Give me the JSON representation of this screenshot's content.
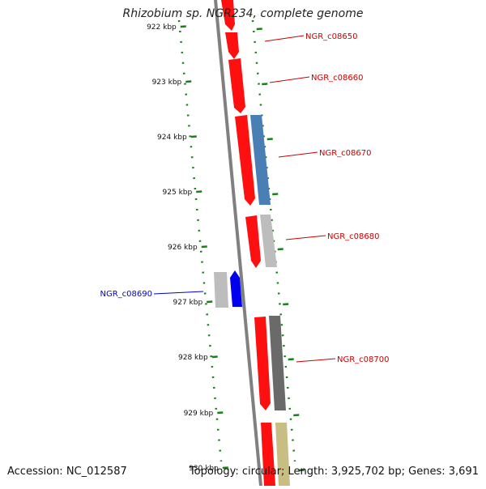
{
  "title": "Rhizobium sp. NGR234, complete genome",
  "accession": "Accession: NC_012587",
  "topology": "Topology: circular; Length: 3,925,702 bp; Genes: 3,691",
  "colors": {
    "backbone": "#808080",
    "tick": "#1a7f1a",
    "gene_label_forward": "#cc0000",
    "gene_label_reverse": "#0000cc",
    "red": "#ff1010",
    "steel_blue": "#4a7fb5",
    "light_gray": "#bdbdbd",
    "dark_gray": "#6a6a6a",
    "blue": "#0000ee",
    "khaki": "#c8bd82"
  },
  "scale": {
    "labels": [
      "922 kbp",
      "923 kbp",
      "924 kbp",
      "925 kbp",
      "926 kbp",
      "927 kbp",
      "928 kbp",
      "929 kbp",
      "930 kbp"
    ]
  },
  "gene_labels": [
    {
      "name": "NGR_c08650",
      "strand": "+"
    },
    {
      "name": "NGR_c08660",
      "strand": "+"
    },
    {
      "name": "NGR_c08670",
      "strand": "+"
    },
    {
      "name": "NGR_c08680",
      "strand": "+"
    },
    {
      "name": "NGR_c08690",
      "strand": "-"
    },
    {
      "name": "NGR_c08700",
      "strand": "+"
    }
  ]
}
